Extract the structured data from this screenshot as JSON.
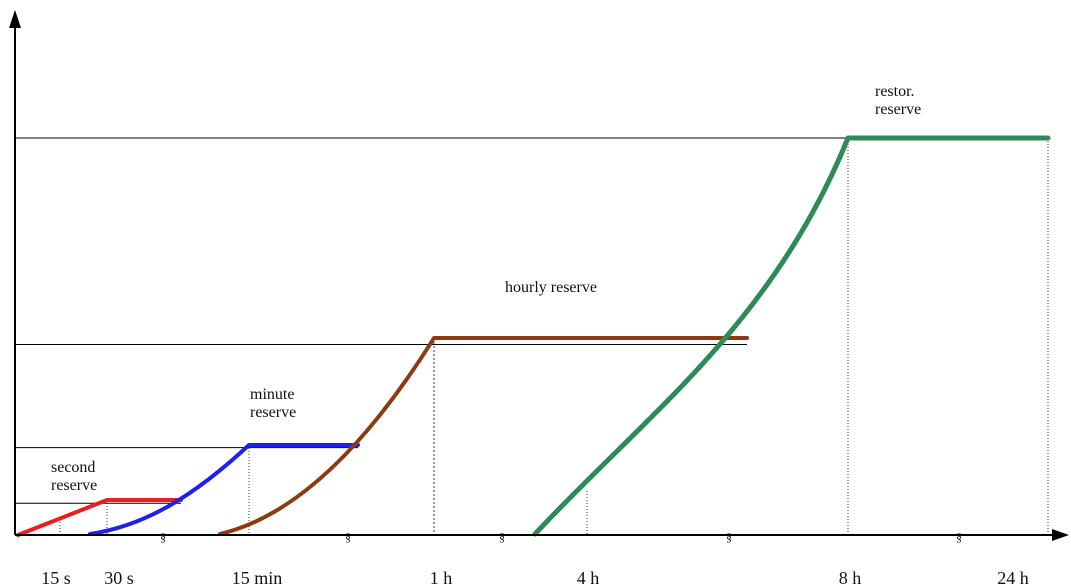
{
  "chart_data": {
    "type": "line",
    "title": "",
    "xlabel": "",
    "ylabel": "",
    "grid": false,
    "legend": "none",
    "x_ticks": [
      "15 s",
      "30 s",
      "15 min",
      "1 h",
      "4 h",
      "8 h",
      "24 h"
    ],
    "axis_break_symbol": "§",
    "levels": [
      "second reserve",
      "minute reserve",
      "hourly reserve",
      "restor. reserve"
    ],
    "series": [
      {
        "name": "second reserve",
        "color": "#ee1c1c",
        "points": [
          [
            "0",
            0
          ],
          [
            "30 s",
            0.08
          ],
          [
            "after 30 s",
            0.08
          ]
        ]
      },
      {
        "name": "minute reserve",
        "color": "#1f1ff0",
        "points": [
          [
            "30 s",
            0
          ],
          [
            "15 min",
            0.22
          ],
          [
            "after 15 min",
            0.22
          ]
        ]
      },
      {
        "name": "hourly reserve",
        "color": "#8b3a12",
        "points": [
          [
            "15 min",
            0
          ],
          [
            "1 h",
            0.48
          ],
          [
            "before 8 h",
            0.48
          ]
        ]
      },
      {
        "name": "restor. reserve",
        "color": "#2e8b57",
        "points": [
          [
            "after 1 h",
            0
          ],
          [
            "8 h",
            1.0
          ],
          [
            "24 h",
            1.0
          ]
        ]
      }
    ],
    "annotations": [
      {
        "lines": [
          "second",
          "reserve"
        ],
        "series": "second reserve"
      },
      {
        "lines": [
          "minute",
          "reserve"
        ],
        "series": "minute reserve"
      },
      {
        "lines": [
          "hourly reserve"
        ],
        "series": "hourly reserve"
      },
      {
        "lines": [
          "restor.",
          "reserve"
        ],
        "series": "restor. reserve"
      }
    ]
  }
}
